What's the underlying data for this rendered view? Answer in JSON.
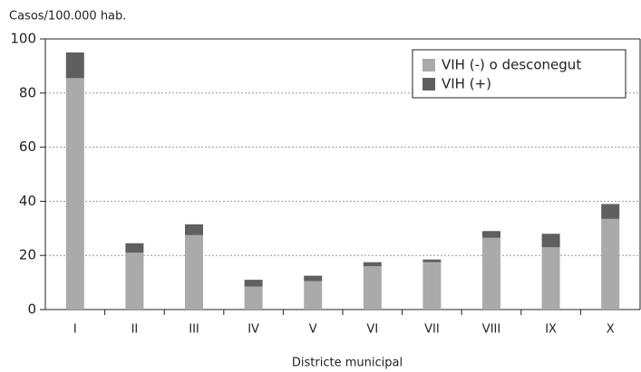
{
  "chart_data": {
    "type": "bar",
    "stacked": true,
    "y_axis_label": "Casos/100.000 hab.",
    "x_axis_label": "Districte municipal",
    "categories": [
      "I",
      "II",
      "III",
      "IV",
      "V",
      "VI",
      "VII",
      "VIII",
      "IX",
      "X"
    ],
    "series": [
      {
        "name": "VIH (-) o desconegut",
        "color": "#aaaaaa",
        "values": [
          85.5,
          21,
          27.5,
          8.5,
          10.5,
          16,
          17.5,
          26.5,
          23,
          33.5
        ]
      },
      {
        "name": "VIH (+)",
        "color": "#5f5f5f",
        "values": [
          9.5,
          3.5,
          4,
          2.5,
          2,
          1.5,
          1,
          2.5,
          5,
          5.5
        ]
      }
    ],
    "ylim": [
      0,
      100
    ],
    "yticks": [
      0,
      20,
      40,
      60,
      80,
      100
    ],
    "grid": true
  }
}
